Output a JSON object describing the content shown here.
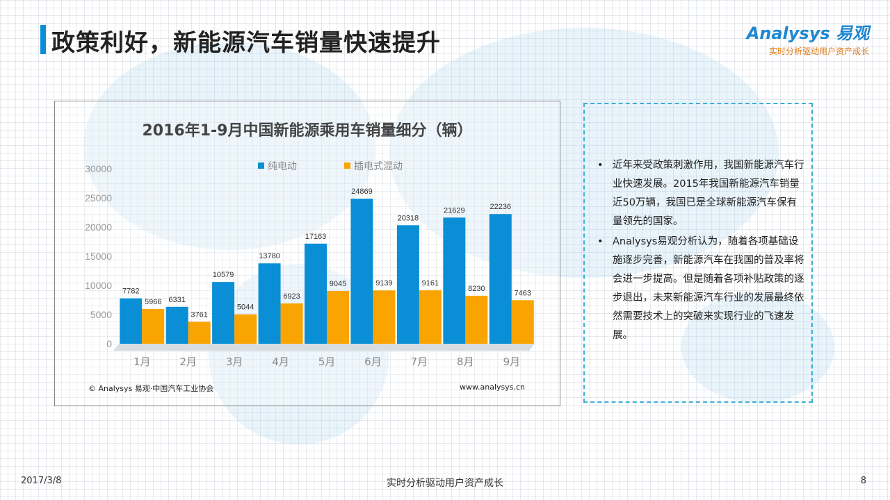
{
  "header": {
    "title": "政策利好，新能源汽车销量快速提升"
  },
  "logo": {
    "brand": "Analysys 易观",
    "slogan": "实时分析驱动用户资产成长"
  },
  "chart_data": {
    "type": "bar",
    "title": "2016年1-9月中国新能源乘用车销量细分（辆）",
    "categories": [
      "1月",
      "2月",
      "3月",
      "4月",
      "5月",
      "6月",
      "7月",
      "8月",
      "9月"
    ],
    "series": [
      {
        "name": "纯电动",
        "color": "#0a8fd6",
        "values": [
          7782,
          6331,
          10579,
          13780,
          17163,
          24869,
          20318,
          21629,
          22236
        ]
      },
      {
        "name": "插电式混动",
        "color": "#f9a400",
        "values": [
          5966,
          3761,
          5044,
          6923,
          9045,
          9139,
          9161,
          8230,
          7463
        ]
      }
    ],
    "ylim": [
      0,
      30000
    ],
    "yticks": [
      "30000",
      "25000",
      "20000",
      "15000",
      "10000",
      "5000",
      "0"
    ],
    "legend": "top",
    "source": "© Analysys 易观·中国汽车工业协会",
    "site": "www.analysys.cn"
  },
  "analysis": {
    "bullet": "•",
    "points": [
      "近年来受政策刺激作用，我国新能源汽车行业快速发展。2015年我国新能源汽车销量近50万辆，我国已是全球新能源汽车保有量领先的国家。",
      "Analysys易观分析认为，随着各项基础设施逐步完善，新能源汽车在我国的普及率将会进一步提高。但是随着各项补贴政策的逐步退出，未来新能源汽车行业的发展最终依然需要技术上的突破来实现行业的飞速发展。"
    ]
  },
  "footer": {
    "date": "2017/3/8",
    "slogan": "实时分析驱动用户资产成长",
    "page": "8"
  }
}
